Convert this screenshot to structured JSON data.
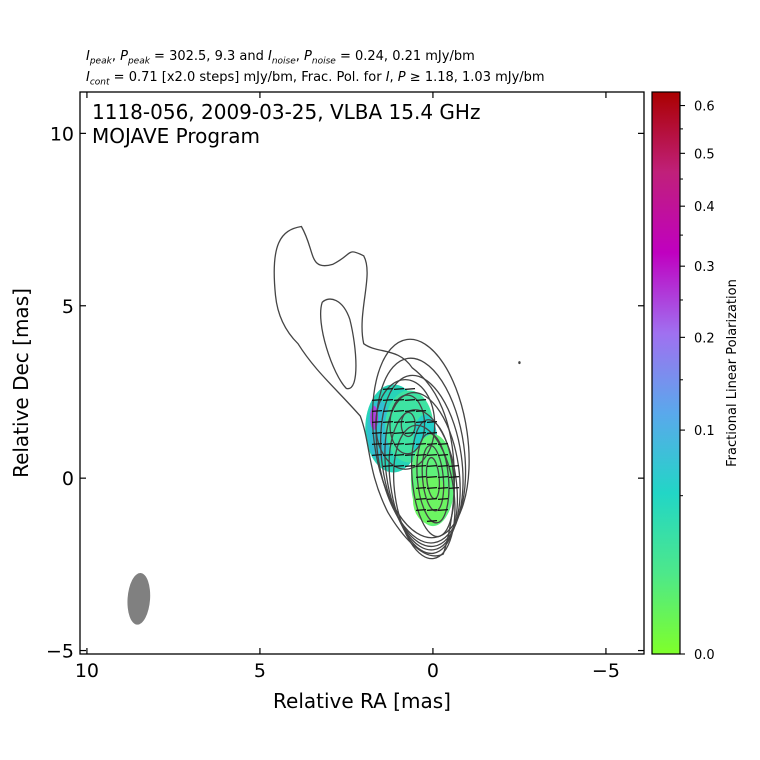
{
  "header": {
    "line1": {
      "peak_values": "302.5, 9.3",
      "noise_values": "0.24, 0.21 mJy/bm"
    },
    "line2": {
      "cont_text": "0.71 [x2.0 steps] mJy/bm, Frac. Pol. for",
      "fracpol_values": "1.18, 1.03 mJy/bm"
    }
  },
  "chart_data": {
    "type": "heatmap",
    "annotation_lines": [
      "1118-056, 2009-03-25, VLBA 15.4 GHz",
      "MOJAVE Program"
    ],
    "xlabel": "Relative RA [mas]",
    "ylabel": "Relative Dec [mas]",
    "xlim": [
      10.2,
      -6.1
    ],
    "ylim": [
      -5.1,
      11.2
    ],
    "x_ticks": [
      10,
      5,
      0,
      -5
    ],
    "x_tick_labels": [
      "10",
      "5",
      "0",
      "−5"
    ],
    "y_ticks": [
      -5,
      0,
      5,
      10
    ],
    "y_tick_labels": [
      "−5",
      "0",
      "5",
      "10"
    ],
    "grid": false,
    "colorbar": {
      "label": "Fractional Linear Polarization",
      "scale": "sqrt",
      "range": [
        0,
        0.63
      ],
      "ticks": [
        0.0,
        0.1,
        0.2,
        0.3,
        0.4,
        0.5,
        0.6
      ],
      "tick_labels": [
        "0.0",
        "0.1",
        "0.2",
        "0.3",
        "0.4",
        "0.5",
        "0.6"
      ],
      "colors": [
        "#7fff2a",
        "#4de88a",
        "#22d6c6",
        "#5aa8ec",
        "#a070f0",
        "#c000c0",
        "#c0207a",
        "#aa0000"
      ]
    },
    "core": {
      "ra": 0.0,
      "dec": 0.0
    },
    "jet_knot": {
      "ra": 0.8,
      "dec": 1.5
    },
    "isolated_component": {
      "ra": -2.5,
      "dec": 3.35
    },
    "beam": {
      "ra": 8.5,
      "dec": -3.5,
      "major_mas": 1.5,
      "minor_mas": 0.65
    },
    "contour_levels_mjy": [
      0.71,
      1.42,
      2.84,
      5.68,
      11.36,
      22.72,
      45.44,
      90.88,
      181.76
    ],
    "evpa_deg": 95
  }
}
